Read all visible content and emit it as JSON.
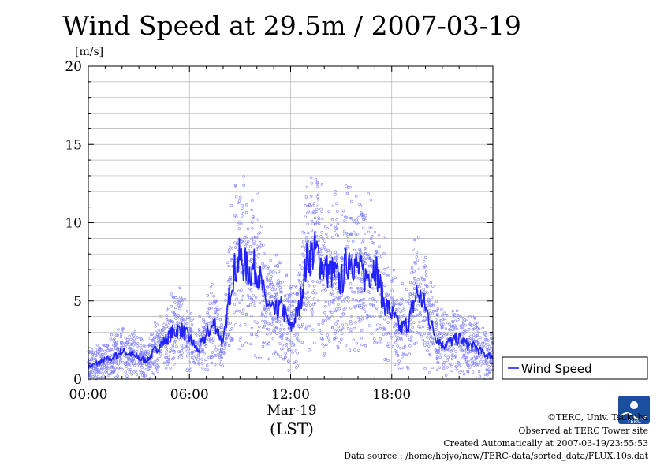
{
  "chart_data": {
    "type": "line",
    "title": "Wind Speed at 29.5m / 2007-03-19",
    "ylabel": "[m/s]",
    "xlabel": "(LST)",
    "date_label": "Mar-19",
    "ylim": [
      0,
      20
    ],
    "xlim_hours": [
      0,
      24
    ],
    "yticks": [
      "0",
      "5",
      "10",
      "15",
      "20"
    ],
    "xticks": [
      {
        "hour": 0,
        "label": "00:00"
      },
      {
        "hour": 6,
        "label": "06:00"
      },
      {
        "hour": 12,
        "label": "12:00"
      },
      {
        "hour": 18,
        "label": "18:00"
      }
    ],
    "grid": true,
    "legend_position": "right",
    "series": [
      {
        "name": "Wind Speed",
        "color": "#2222ff",
        "scatter_color": "#8080ff",
        "x_hours": [
          0.0,
          0.5,
          1.0,
          1.5,
          2.0,
          2.5,
          3.0,
          3.5,
          4.0,
          4.5,
          5.0,
          5.5,
          6.0,
          6.5,
          7.0,
          7.5,
          8.0,
          8.5,
          9.0,
          9.5,
          10.0,
          10.5,
          11.0,
          11.5,
          12.0,
          12.5,
          13.0,
          13.5,
          14.0,
          14.5,
          15.0,
          15.5,
          16.0,
          16.5,
          17.0,
          17.5,
          18.0,
          18.5,
          19.0,
          19.5,
          20.0,
          20.5,
          21.0,
          21.5,
          22.0,
          22.5,
          23.0,
          23.5,
          24.0
        ],
        "y": [
          0.8,
          1.0,
          1.2,
          1.4,
          1.8,
          1.6,
          1.3,
          1.2,
          1.9,
          2.4,
          3.0,
          3.2,
          2.6,
          1.8,
          2.8,
          3.6,
          2.2,
          6.5,
          7.8,
          6.9,
          7.2,
          5.0,
          4.2,
          4.6,
          3.2,
          4.5,
          7.8,
          8.2,
          7.0,
          6.8,
          6.2,
          8.0,
          7.0,
          6.5,
          7.4,
          5.0,
          4.2,
          3.2,
          3.6,
          5.6,
          4.6,
          3.0,
          2.2,
          2.4,
          2.6,
          2.2,
          2.0,
          1.6,
          1.4
        ]
      }
    ]
  },
  "legend": {
    "label": "Wind Speed"
  },
  "credits": {
    "copyright": "©TERC, Univ. Tsukuba",
    "observed": "Observed at TERC Tower site",
    "created": "Created Automatically at 2007-03-19/23:55:53",
    "source": "Data source : /home/hojyo/new/TERC-data/sorted_data/FLUX.10s.dat",
    "logo_text": "TERC"
  }
}
